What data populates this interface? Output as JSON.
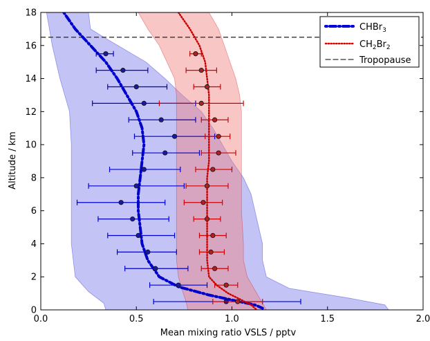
{
  "chart_data": {
    "type": "line",
    "title": "",
    "xlabel": "Mean mixing ratio VSLS / pptv",
    "ylabel": "Altitude / km",
    "xlim": [
      0.0,
      2.0
    ],
    "ylim": [
      0,
      18
    ],
    "xticks": [
      0.0,
      0.5,
      1.0,
      1.5,
      2.0
    ],
    "xtick_labels": [
      "0.0",
      "0.5",
      "1.0",
      "1.5",
      "2.0"
    ],
    "yticks": [
      0,
      2,
      4,
      6,
      8,
      10,
      12,
      14,
      16,
      18
    ],
    "ytick_labels": [
      "0",
      "2",
      "4",
      "6",
      "8",
      "10",
      "12",
      "14",
      "16",
      "18"
    ],
    "grid": false,
    "legend_position": "top-right",
    "legend": [
      {
        "label": "CHBr",
        "sub": "3",
        "style": "dashdot",
        "color": "#0000dd"
      },
      {
        "label": "CH",
        "sub": "2",
        "label2": "Br",
        "sub2": "2",
        "style": "dotted",
        "color": "#dd0000"
      },
      {
        "label": "Tropopause",
        "style": "dashed",
        "color": "#333333"
      }
    ],
    "tropopause_km": 16.5,
    "series": [
      {
        "name": "CHBr3",
        "color": "#0000cc",
        "band_color": "#7b7bea",
        "profile": [
          [
            0.12,
            18
          ],
          [
            0.18,
            17
          ],
          [
            0.26,
            16
          ],
          [
            0.34,
            15
          ],
          [
            0.4,
            14
          ],
          [
            0.45,
            13
          ],
          [
            0.5,
            12
          ],
          [
            0.53,
            11
          ],
          [
            0.54,
            10
          ],
          [
            0.53,
            9
          ],
          [
            0.52,
            8
          ],
          [
            0.51,
            7
          ],
          [
            0.51,
            6
          ],
          [
            0.52,
            5
          ],
          [
            0.53,
            4
          ],
          [
            0.56,
            3
          ],
          [
            0.62,
            2
          ],
          [
            0.72,
            1.4
          ],
          [
            0.88,
            0.9
          ],
          [
            1.02,
            0.55
          ],
          [
            1.12,
            0.3
          ],
          [
            1.16,
            0.1
          ]
        ],
        "band_low": [
          [
            0.03,
            18
          ],
          [
            0.06,
            16
          ],
          [
            0.1,
            14
          ],
          [
            0.15,
            12
          ],
          [
            0.16,
            10
          ],
          [
            0.16,
            8
          ],
          [
            0.16,
            6
          ],
          [
            0.16,
            4
          ],
          [
            0.18,
            2
          ],
          [
            0.25,
            1.1
          ],
          [
            0.33,
            0.4
          ],
          [
            0.34,
            0
          ]
        ],
        "band_high": [
          [
            0.25,
            18
          ],
          [
            0.26,
            17
          ],
          [
            0.33,
            16.5
          ],
          [
            0.55,
            15
          ],
          [
            0.65,
            14
          ],
          [
            0.74,
            13
          ],
          [
            0.84,
            12
          ],
          [
            0.9,
            11
          ],
          [
            0.95,
            10
          ],
          [
            1.0,
            9
          ],
          [
            1.06,
            8
          ],
          [
            1.1,
            7
          ],
          [
            1.12,
            6
          ],
          [
            1.14,
            5
          ],
          [
            1.16,
            4
          ],
          [
            1.16,
            3
          ],
          [
            1.18,
            2
          ],
          [
            1.3,
            1.3
          ],
          [
            1.62,
            0.7
          ],
          [
            1.8,
            0.3
          ],
          [
            1.82,
            0
          ]
        ],
        "points": [
          {
            "alt": 0.5,
            "x": 0.97,
            "lo": 0.59,
            "hi": 1.36
          },
          {
            "alt": 1.5,
            "x": 0.72,
            "lo": 0.57,
            "hi": 0.87
          },
          {
            "alt": 2.5,
            "x": 0.6,
            "lo": 0.44,
            "hi": 0.77
          },
          {
            "alt": 3.5,
            "x": 0.56,
            "lo": 0.4,
            "hi": 0.71
          },
          {
            "alt": 4.5,
            "x": 0.51,
            "lo": 0.35,
            "hi": 0.7
          },
          {
            "alt": 5.5,
            "x": 0.48,
            "lo": 0.3,
            "hi": 0.67
          },
          {
            "alt": 6.5,
            "x": 0.42,
            "lo": 0.19,
            "hi": 0.65
          },
          {
            "alt": 7.5,
            "x": 0.5,
            "lo": 0.25,
            "hi": 0.75
          },
          {
            "alt": 8.5,
            "x": 0.54,
            "lo": 0.36,
            "hi": 0.73
          },
          {
            "alt": 9.5,
            "x": 0.65,
            "lo": 0.48,
            "hi": 0.83
          },
          {
            "alt": 10.5,
            "x": 0.7,
            "lo": 0.49,
            "hi": 0.91
          },
          {
            "alt": 11.5,
            "x": 0.63,
            "lo": 0.46,
            "hi": 0.81
          },
          {
            "alt": 12.5,
            "x": 0.54,
            "lo": 0.27,
            "hi": 0.81
          },
          {
            "alt": 13.5,
            "x": 0.5,
            "lo": 0.35,
            "hi": 0.66
          },
          {
            "alt": 14.5,
            "x": 0.43,
            "lo": 0.29,
            "hi": 0.56
          },
          {
            "alt": 15.5,
            "x": 0.34,
            "lo": 0.29,
            "hi": 0.38
          }
        ]
      },
      {
        "name": "CH2Br2",
        "color": "#cc0000",
        "band_color": "#f28080",
        "profile": [
          [
            0.72,
            18
          ],
          [
            0.78,
            17
          ],
          [
            0.83,
            16
          ],
          [
            0.86,
            15
          ],
          [
            0.87,
            14
          ],
          [
            0.88,
            13
          ],
          [
            0.88,
            12
          ],
          [
            0.88,
            11
          ],
          [
            0.88,
            10
          ],
          [
            0.88,
            9
          ],
          [
            0.87,
            8
          ],
          [
            0.87,
            7
          ],
          [
            0.87,
            6
          ],
          [
            0.87,
            5
          ],
          [
            0.87,
            4
          ],
          [
            0.87,
            3
          ],
          [
            0.88,
            2
          ],
          [
            0.92,
            1.5
          ],
          [
            0.98,
            1.0
          ],
          [
            1.05,
            0.6
          ],
          [
            1.1,
            0.3
          ],
          [
            1.13,
            0
          ]
        ],
        "band_low": [
          [
            0.51,
            18
          ],
          [
            0.56,
            17
          ],
          [
            0.62,
            16
          ],
          [
            0.66,
            15
          ],
          [
            0.7,
            14
          ],
          [
            0.71,
            13
          ],
          [
            0.71,
            12
          ],
          [
            0.71,
            11
          ],
          [
            0.71,
            10
          ],
          [
            0.71,
            9
          ],
          [
            0.71,
            8
          ],
          [
            0.71,
            7
          ],
          [
            0.71,
            6
          ],
          [
            0.71,
            5
          ],
          [
            0.71,
            4
          ],
          [
            0.71,
            3
          ],
          [
            0.72,
            2
          ],
          [
            0.74,
            1.2
          ],
          [
            0.76,
            0.5
          ],
          [
            0.77,
            0
          ]
        ],
        "band_high": [
          [
            0.88,
            18
          ],
          [
            0.93,
            17
          ],
          [
            0.96,
            16
          ],
          [
            0.99,
            15
          ],
          [
            1.02,
            14
          ],
          [
            1.04,
            13
          ],
          [
            1.05,
            12
          ],
          [
            1.05,
            10
          ],
          [
            1.05,
            8
          ],
          [
            1.05,
            6
          ],
          [
            1.06,
            4
          ],
          [
            1.06,
            3
          ],
          [
            1.08,
            2
          ],
          [
            1.12,
            1.2
          ],
          [
            1.15,
            0.6
          ],
          [
            1.18,
            0
          ]
        ],
        "points": [
          {
            "alt": 0.5,
            "x": 1.03,
            "lo": 0.9,
            "hi": 1.16
          },
          {
            "alt": 1.5,
            "x": 0.97,
            "lo": 0.91,
            "hi": 1.03
          },
          {
            "alt": 2.5,
            "x": 0.91,
            "lo": 0.84,
            "hi": 0.98
          },
          {
            "alt": 3.5,
            "x": 0.89,
            "lo": 0.83,
            "hi": 0.96
          },
          {
            "alt": 4.5,
            "x": 0.9,
            "lo": 0.83,
            "hi": 0.97
          },
          {
            "alt": 5.5,
            "x": 0.87,
            "lo": 0.8,
            "hi": 0.94
          },
          {
            "alt": 6.5,
            "x": 0.85,
            "lo": 0.75,
            "hi": 0.95
          },
          {
            "alt": 7.5,
            "x": 0.87,
            "lo": 0.76,
            "hi": 0.98
          },
          {
            "alt": 8.5,
            "x": 0.9,
            "lo": 0.81,
            "hi": 1.0
          },
          {
            "alt": 9.5,
            "x": 0.93,
            "lo": 0.84,
            "hi": 1.02
          },
          {
            "alt": 10.5,
            "x": 0.93,
            "lo": 0.86,
            "hi": 0.99
          },
          {
            "alt": 11.5,
            "x": 0.91,
            "lo": 0.84,
            "hi": 0.98
          },
          {
            "alt": 12.5,
            "x": 0.84,
            "lo": 0.62,
            "hi": 1.06
          },
          {
            "alt": 13.5,
            "x": 0.87,
            "lo": 0.8,
            "hi": 0.94
          },
          {
            "alt": 14.5,
            "x": 0.84,
            "lo": 0.76,
            "hi": 0.92
          },
          {
            "alt": 15.5,
            "x": 0.81,
            "lo": 0.78,
            "hi": 0.84
          }
        ]
      }
    ]
  }
}
